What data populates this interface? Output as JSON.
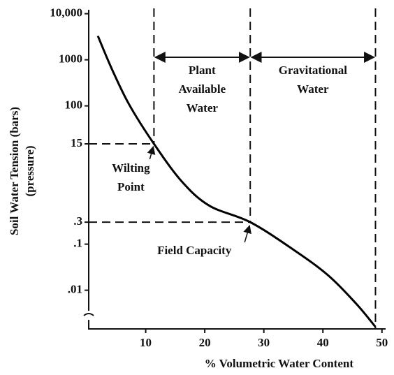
{
  "chart_data": {
    "type": "line",
    "log_y": true,
    "ylabel": [
      "Soil Water Tension (bars)",
      "(pressure)"
    ],
    "xlabel": "% Volumetric Water Content",
    "x": [
      1.9,
      4.3,
      7.2,
      11.4,
      16.1,
      20.8,
      27.7,
      35,
      40.9,
      45.7,
      48.9
    ],
    "values": [
      3300,
      620,
      107,
      15,
      2.3,
      0.68,
      0.3,
      0.076,
      0.021,
      0.005,
      0.0016
    ],
    "color": "#000000",
    "xlim": [
      0,
      50.5
    ],
    "xticks": [
      10,
      20,
      30,
      40,
      50
    ],
    "ylim": [
      0.0015,
      15000
    ],
    "yticks": [
      {
        "value": 10000,
        "label": "10,000"
      },
      1000,
      100,
      15,
      {
        "value": 0.3,
        "label": ".3"
      },
      {
        "value": 0.1,
        "label": ".1"
      },
      {
        "value": 0.01,
        "label": ".01"
      }
    ],
    "wilting_point": {
      "x": 11.4,
      "y": 15,
      "label": [
        "Wilting",
        "Point"
      ]
    },
    "field_capacity": {
      "x": 27.7,
      "y": 0.3,
      "label": "Field Capacity"
    },
    "saturation_x": 48.9,
    "zones": [
      {
        "label": [
          "Plant",
          "Available",
          "Water"
        ]
      },
      {
        "label": [
          "Gravitational",
          "Water"
        ]
      }
    ]
  }
}
